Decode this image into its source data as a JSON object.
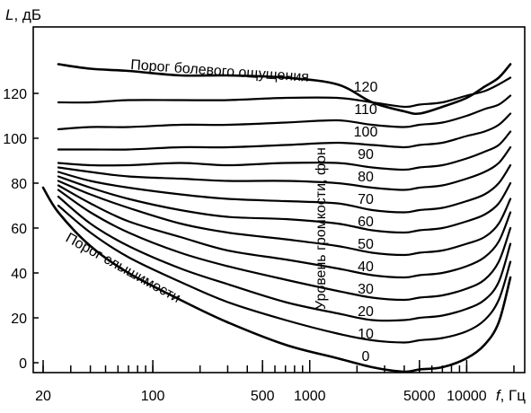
{
  "chart_data": {
    "type": "line",
    "title": "",
    "xlabel_var": "f",
    "xlabel_unit": ", Гц",
    "ylabel_var": "L",
    "ylabel_unit": ", дБ",
    "x_scale": "log",
    "xlim": [
      18,
      20000
    ],
    "ylim": [
      -5,
      138
    ],
    "x_ticks": [
      20,
      100,
      500,
      1000,
      5000,
      10000
    ],
    "y_ticks": [
      0,
      20,
      40,
      60,
      80,
      100,
      120
    ],
    "grid": false,
    "annotations": {
      "pain_threshold": "Порог болевого ощущения",
      "hearing_threshold": "Порог слышимости",
      "loudness_axis": "Уровень громкости, фон"
    },
    "series": [
      {
        "name": "0",
        "x": [
          20,
          25,
          40,
          70,
          150,
          300,
          700,
          1500,
          2500,
          4000,
          5000,
          7000,
          10000,
          13000,
          16000,
          19000
        ],
        "y": [
          78,
          67,
          52,
          40,
          28,
          18,
          8,
          2,
          -2,
          -4,
          -3,
          -2,
          2,
          8,
          18,
          38
        ]
      },
      {
        "name": "10",
        "x": [
          25,
          40,
          70,
          150,
          300,
          700,
          1500,
          2500,
          4000,
          5000,
          7000,
          10000,
          13000,
          16000,
          19000
        ],
        "y": [
          70,
          58,
          47,
          36,
          27,
          19,
          13,
          10,
          9,
          10,
          11,
          14,
          19,
          28,
          45
        ]
      },
      {
        "name": "20",
        "x": [
          25,
          40,
          70,
          150,
          300,
          700,
          1500,
          2500,
          4000,
          5000,
          7000,
          10000,
          13000,
          16000,
          19000
        ],
        "y": [
          74,
          62,
          52,
          42,
          35,
          27,
          22,
          19,
          19,
          20,
          21,
          24,
          28,
          36,
          53
        ]
      },
      {
        "name": "30",
        "x": [
          25,
          40,
          70,
          150,
          300,
          700,
          1500,
          2500,
          4000,
          5000,
          7000,
          10000,
          13000,
          16000,
          19000
        ],
        "y": [
          77,
          67,
          58,
          49,
          43,
          37,
          32,
          29,
          28,
          29,
          30,
          33,
          37,
          45,
          60
        ]
      },
      {
        "name": "40",
        "x": [
          25,
          40,
          70,
          150,
          300,
          700,
          1500,
          2500,
          4000,
          5000,
          7000,
          10000,
          13000,
          16000,
          19000
        ],
        "y": [
          79,
          71,
          63,
          56,
          50,
          46,
          42,
          39,
          38,
          39,
          40,
          43,
          47,
          54,
          67
        ]
      },
      {
        "name": "50",
        "x": [
          25,
          40,
          70,
          150,
          300,
          700,
          1500,
          2500,
          4000,
          5000,
          7000,
          10000,
          13000,
          16000,
          19000
        ],
        "y": [
          81,
          75,
          69,
          62,
          58,
          55,
          52,
          49,
          48,
          49,
          50,
          53,
          56,
          62,
          73
        ]
      },
      {
        "name": "60",
        "x": [
          25,
          40,
          70,
          150,
          300,
          700,
          1500,
          2500,
          4000,
          5000,
          7000,
          10000,
          13000,
          16000,
          19000
        ],
        "y": [
          83,
          78,
          73,
          68,
          65,
          64,
          62,
          59,
          58,
          59,
          60,
          63,
          66,
          71,
          80
        ]
      },
      {
        "name": "70",
        "x": [
          25,
          40,
          70,
          150,
          300,
          700,
          1500,
          2500,
          4000,
          5000,
          7000,
          10000,
          13000,
          16000,
          19000
        ],
        "y": [
          85,
          81,
          78,
          75,
          73,
          72,
          71,
          68,
          67,
          68,
          69,
          72,
          75,
          80,
          88
        ]
      },
      {
        "name": "80",
        "x": [
          25,
          40,
          70,
          150,
          300,
          700,
          1500,
          2500,
          4000,
          5000,
          7000,
          10000,
          13000,
          16000,
          19000
        ],
        "y": [
          87,
          85,
          83,
          82,
          81,
          81,
          80,
          78,
          77,
          78,
          79,
          82,
          85,
          89,
          96
        ]
      },
      {
        "name": "90",
        "x": [
          25,
          40,
          70,
          150,
          300,
          700,
          1500,
          2500,
          4000,
          5000,
          7000,
          10000,
          13000,
          16000,
          19000
        ],
        "y": [
          89,
          88,
          88,
          89,
          88,
          89,
          89,
          87,
          86,
          87,
          88,
          91,
          94,
          97,
          103
        ]
      },
      {
        "name": "100",
        "x": [
          25,
          40,
          70,
          150,
          300,
          700,
          1500,
          2500,
          4000,
          5000,
          7000,
          10000,
          13000,
          16000,
          19000
        ],
        "y": [
          95,
          95,
          95,
          96,
          96,
          97,
          98,
          97,
          96,
          97,
          98,
          101,
          103,
          106,
          111
        ]
      },
      {
        "name": "110",
        "x": [
          25,
          40,
          70,
          150,
          300,
          700,
          1500,
          2500,
          4000,
          5000,
          7000,
          10000,
          13000,
          16000,
          19000
        ],
        "y": [
          104,
          105,
          105,
          106,
          106,
          107,
          108,
          106,
          105,
          106,
          107,
          110,
          113,
          115,
          119
        ]
      },
      {
        "name": "120",
        "x": [
          25,
          40,
          70,
          150,
          300,
          700,
          1500,
          2500,
          4000,
          5000,
          7000,
          10000,
          13000,
          16000,
          19000
        ],
        "y": [
          116,
          116,
          117,
          117,
          117,
          118,
          118,
          116,
          114,
          115,
          116,
          119,
          121,
          124,
          127
        ]
      },
      {
        "name": "Порог болевого ощущения",
        "x": [
          25,
          40,
          70,
          150,
          300,
          700,
          1500,
          2500,
          4000,
          5000,
          7000,
          10000,
          13000,
          16000,
          19000
        ],
        "y": [
          133,
          131,
          130,
          128,
          128,
          127,
          124,
          116,
          112,
          111,
          114,
          118,
          123,
          127,
          133
        ]
      }
    ]
  }
}
